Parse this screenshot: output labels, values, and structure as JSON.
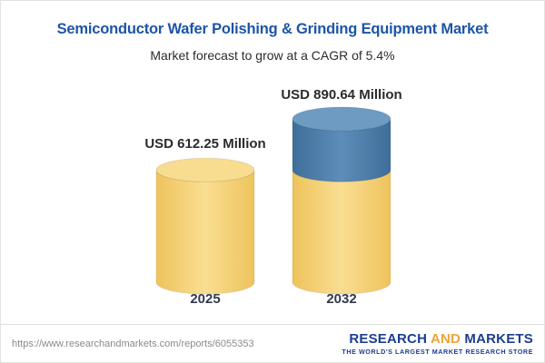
{
  "header": {
    "title": "Semiconductor Wafer Polishing & Grinding Equipment Market",
    "subtitle": "Market forecast to grow at a CAGR of 5.4%"
  },
  "chart_data": {
    "type": "bar",
    "variant": "3d-cylinder",
    "title": "Semiconductor Wafer Polishing & Grinding Equipment Market",
    "subtitle": "Market forecast to grow at a CAGR of 5.4%",
    "categories": [
      "2025",
      "2032"
    ],
    "values": [
      612.25,
      890.64
    ],
    "value_labels": [
      "USD 612.25 Million",
      "USD 890.64 Million"
    ],
    "unit": "USD Million",
    "cagr_pct": 5.4,
    "ylim": [
      0,
      890.64
    ],
    "grid": false,
    "legend": false,
    "colors": {
      "base_fill": "#f6d06a",
      "base_top": "#f8dc90",
      "growth_fill": "#4a7ca8",
      "growth_top": "#6d9bc1"
    }
  },
  "footer": {
    "url": "https://www.researchandmarkets.com/reports/6055353",
    "logo": {
      "research": "RESEARCH",
      "and": "AND",
      "markets": "MARKETS",
      "tagline": "THE WORLD'S LARGEST MARKET RESEARCH STORE"
    }
  }
}
